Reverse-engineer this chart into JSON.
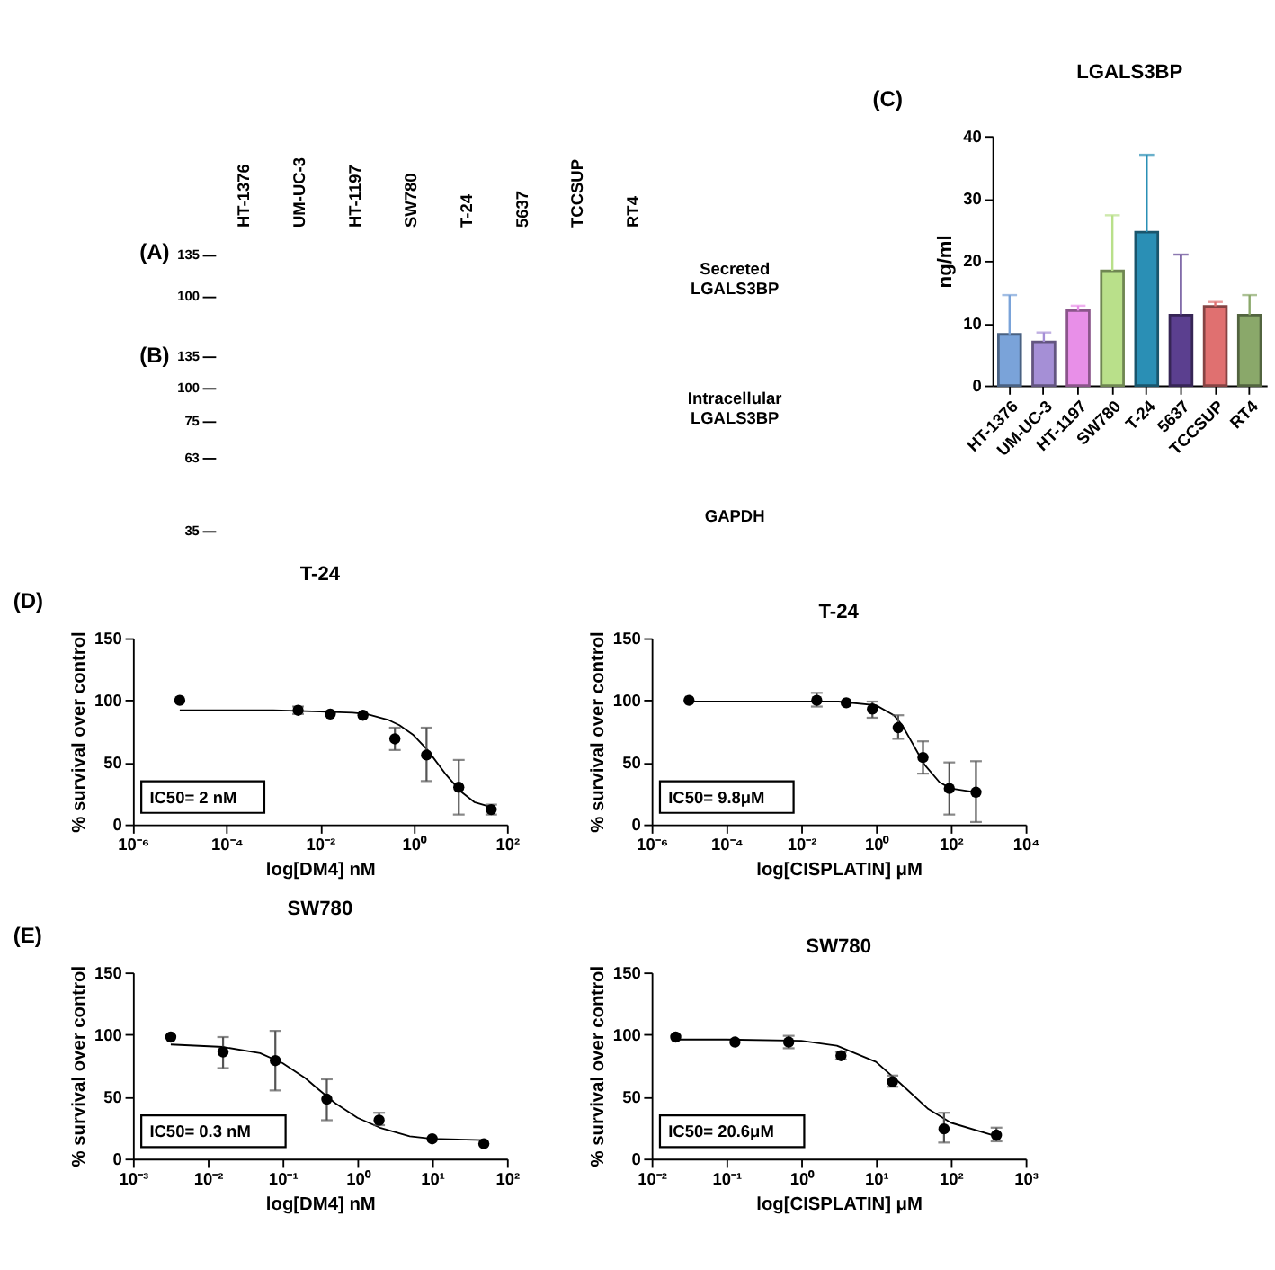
{
  "chart_data": [
    {
      "type": "other",
      "categories": [
        "HT-1376",
        "UM-UC-3",
        "HT-1197",
        "SW780",
        "T-24",
        "5637",
        "TCCSUP",
        "RT4"
      ],
      "annotations": [
        "(A)",
        "(B)",
        "135",
        "100",
        "135",
        "100",
        "75",
        "63",
        "35",
        "Secreted\nLGALS3BP",
        "Intracellular\nLGALS3BP",
        "GAPDH"
      ]
    },
    {
      "type": "bar",
      "title": "LGALS3BP",
      "ylabel": "ng/ml",
      "annotations": [
        "(C)"
      ],
      "categories": [
        "HT-1376",
        "UM-UC-3",
        "HT-1197",
        "SW780",
        "T-24",
        "5637",
        "TCCSUP",
        "RT4"
      ],
      "values": [
        8.2,
        7.0,
        12.0,
        18.4,
        24.6,
        11.3,
        12.7,
        11.3
      ],
      "errors": [
        [
          8.2,
          14.5
        ],
        [
          7.0,
          8.5
        ],
        [
          12.0,
          12.8
        ],
        [
          18.4,
          27.3
        ],
        [
          24.6,
          37
        ],
        [
          11.3,
          21
        ],
        [
          12.7,
          13.4
        ],
        [
          11.3,
          14.5
        ]
      ],
      "colors": [
        "#7aa3d9",
        "#a58fd6",
        "#e88fe8",
        "#b9e08a",
        "#2a8fb5",
        "#5b3f8f",
        "#e07070",
        "#8aa86a"
      ],
      "ylim": [
        0,
        40
      ],
      "yticks": [
        0,
        10,
        20,
        30,
        40
      ]
    },
    {
      "type": "scatter",
      "title": "T-24",
      "xlabel": "log[DM4] nM",
      "ylabel": "% survival over control",
      "annotations": [
        "(D)",
        "IC50= 2 nM"
      ],
      "log": "x",
      "xlim": [
        1e-06,
        100
      ],
      "xticks": [
        {
          "value": 1e-06,
          "label": "10⁻⁶"
        },
        {
          "value": 0.0001,
          "label": "10⁻⁴"
        },
        {
          "value": 0.01,
          "label": "10⁻²"
        },
        {
          "value": 1,
          "label": "10⁰"
        },
        {
          "value": 100,
          "label": "10²"
        }
      ],
      "ylim": [
        0,
        150
      ],
      "yticks": [
        0,
        50,
        100,
        150
      ],
      "series": [
        {
          "type": "scatter",
          "color": "#000000",
          "marker": "circle",
          "x": [
            1e-05,
            0.0034,
            0.0166,
            0.083,
            0.4,
            1.9,
            9.3,
            46
          ],
          "values": [
            100,
            92,
            89,
            88,
            69,
            56,
            30,
            12
          ],
          "errors": [
            null,
            [
              89,
              95
            ],
            null,
            null,
            [
              60,
              78
            ],
            [
              35,
              78
            ],
            [
              8,
              52
            ],
            [
              8,
              16
            ]
          ]
        },
        {
          "type": "line",
          "color": "#000000",
          "line_style": "solid",
          "x": [
            1e-05,
            0.001,
            0.01,
            0.05,
            0.1,
            0.3,
            0.5,
            1,
            2,
            5,
            10,
            20,
            46
          ],
          "values": [
            92,
            92,
            91,
            90,
            89,
            84,
            80,
            72,
            60,
            40,
            27,
            18,
            14
          ]
        }
      ]
    },
    {
      "type": "scatter",
      "title": "T-24",
      "xlabel": "log[CISPLATIN] μM",
      "ylabel": "% survival over control",
      "annotations": [
        "IC50= 9.8μM"
      ],
      "log": "x",
      "xlim": [
        1e-06,
        10000
      ],
      "xticks": [
        {
          "value": 1e-06,
          "label": "10⁻⁶"
        },
        {
          "value": 0.0001,
          "label": "10⁻⁴"
        },
        {
          "value": 0.01,
          "label": "10⁻²"
        },
        {
          "value": 1,
          "label": "10⁰"
        },
        {
          "value": 100,
          "label": "10²"
        },
        {
          "value": 10000,
          "label": "10⁴"
        }
      ],
      "ylim": [
        0,
        150
      ],
      "yticks": [
        0,
        50,
        100,
        150
      ],
      "series": [
        {
          "type": "scatter",
          "color": "#000000",
          "marker": "circle",
          "x": [
            1e-05,
            0.026,
            0.16,
            0.8,
            3.9,
            18,
            91,
            470
          ],
          "values": [
            100,
            100,
            98,
            93,
            78,
            54,
            29,
            26
          ],
          "errors": [
            null,
            [
              95,
              106
            ],
            null,
            [
              86,
              99
            ],
            [
              69,
              88
            ],
            [
              41,
              67
            ],
            [
              8,
              50
            ],
            [
              2,
              51
            ]
          ]
        },
        {
          "type": "line",
          "color": "#000000",
          "line_style": "solid",
          "x": [
            1e-05,
            0.01,
            0.1,
            1,
            3,
            5,
            10,
            20,
            50,
            100,
            470
          ],
          "values": [
            99,
            99,
            99,
            96,
            88,
            80,
            64,
            48,
            34,
            29,
            26
          ]
        }
      ]
    },
    {
      "type": "scatter",
      "title": "SW780",
      "xlabel": "log[DM4] nM",
      "ylabel": "% survival over control",
      "annotations": [
        "(E)",
        "IC50= 0.3 nM"
      ],
      "log": "x",
      "xlim": [
        0.001,
        100
      ],
      "xticks": [
        {
          "value": 0.001,
          "label": "10⁻³"
        },
        {
          "value": 0.01,
          "label": "10⁻²"
        },
        {
          "value": 0.1,
          "label": "10⁻¹"
        },
        {
          "value": 1,
          "label": "10⁰"
        },
        {
          "value": 10,
          "label": "10¹"
        },
        {
          "value": 100,
          "label": "10²"
        }
      ],
      "ylim": [
        0,
        150
      ],
      "yticks": [
        0,
        50,
        100,
        150
      ],
      "series": [
        {
          "type": "scatter",
          "color": "#000000",
          "marker": "circle",
          "x": [
            0.0032,
            0.016,
            0.08,
            0.39,
            1.95,
            10,
            49
          ],
          "values": [
            98,
            86,
            79,
            48,
            31,
            16,
            12
          ],
          "errors": [
            null,
            [
              73,
              98
            ],
            [
              55,
              103
            ],
            [
              31,
              64
            ],
            [
              27,
              37
            ],
            null,
            null
          ]
        },
        {
          "type": "line",
          "color": "#000000",
          "line_style": "solid",
          "x": [
            0.0032,
            0.016,
            0.05,
            0.1,
            0.2,
            0.3,
            0.5,
            1,
            2,
            5,
            10,
            49
          ],
          "values": [
            92,
            90,
            85,
            77,
            65,
            56,
            45,
            33,
            25,
            18,
            16,
            15
          ]
        }
      ]
    },
    {
      "type": "scatter",
      "title": "SW780",
      "xlabel": "log[CISPLATIN] μM",
      "ylabel": "% survival over control",
      "annotations": [
        "IC50= 20.6μM"
      ],
      "log": "x",
      "xlim": [
        0.01,
        1000
      ],
      "xticks": [
        {
          "value": 0.01,
          "label": "10⁻²"
        },
        {
          "value": 0.1,
          "label": "10⁻¹"
        },
        {
          "value": 1,
          "label": "10⁰"
        },
        {
          "value": 10,
          "label": "10¹"
        },
        {
          "value": 100,
          "label": "10²"
        },
        {
          "value": 1000,
          "label": "10³"
        }
      ],
      "ylim": [
        0,
        150
      ],
      "yticks": [
        0,
        50,
        100,
        150
      ],
      "series": [
        {
          "type": "scatter",
          "color": "#000000",
          "marker": "circle",
          "x": [
            0.021,
            0.13,
            0.68,
            3.4,
            16.6,
            81,
            407
          ],
          "values": [
            98,
            94,
            94,
            83,
            62,
            24,
            19
          ],
          "errors": [
            null,
            null,
            [
              89,
              99
            ],
            [
              80,
              86
            ],
            [
              58,
              67
            ],
            [
              13,
              37
            ],
            [
              14,
              25
            ]
          ]
        },
        {
          "type": "line",
          "color": "#000000",
          "line_style": "solid",
          "x": [
            0.021,
            0.1,
            1,
            3,
            10,
            20,
            50,
            100,
            407
          ],
          "values": [
            96,
            96,
            95,
            91,
            78,
            62,
            40,
            29,
            18
          ]
        }
      ]
    }
  ]
}
